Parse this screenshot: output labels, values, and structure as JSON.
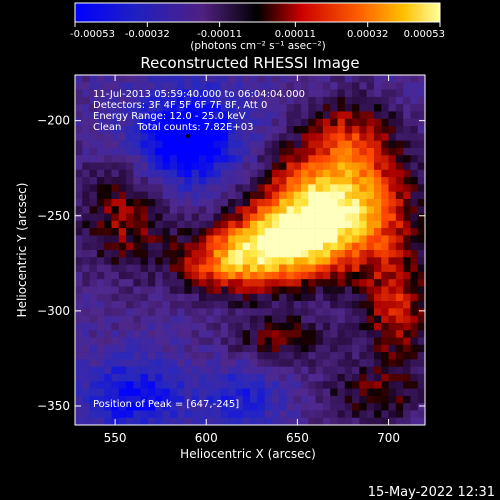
{
  "colorbar": {
    "tick_labels": [
      "-0.00053",
      "-0.00032",
      "-0.00011",
      "0.00011",
      "0.00032",
      "0.00053"
    ],
    "tick_values": [
      -0.00053,
      -0.00032,
      -0.00011,
      0.00011,
      0.00032,
      0.00053
    ],
    "range": [
      -0.00053,
      0.00053
    ],
    "units_label": "(photons cm⁻² s⁻¹ asec⁻²)",
    "colors": [
      "#0000ff",
      "#2020c0",
      "#502080",
      "#000000",
      "#cc0000",
      "#ff6000",
      "#ffc000",
      "#ffffa0"
    ]
  },
  "info_lines": [
    "11-Jul-2013 05:59:40.000 to 06:04:04.000",
    "Detectors: 3F 4F 5F 6F 7F 8F, Att 0",
    "Energy Range: 12.0 - 25.0 keV",
    "Clean     Total counts: 7.82E+03"
  ],
  "peak_label": "Position of Peak = [647,-245]",
  "timestamp": "15-May-2022 12:31",
  "chart_data": {
    "type": "heatmap",
    "title": "Reconstructed RHESSI Image",
    "xlabel": "Heliocentric X (arcsec)",
    "ylabel": "Heliocentric Y (arcsec)",
    "xlim": [
      528,
      720
    ],
    "ylim": [
      -360,
      -176
    ],
    "xticks": [
      550,
      600,
      650,
      700
    ],
    "xtick_labels": [
      "550",
      "600",
      "650",
      "700"
    ],
    "yticks": [
      -200,
      -250,
      -300,
      -350
    ],
    "ytick_labels": [
      "−200",
      "−250",
      "−300",
      "−350"
    ],
    "value_range": [
      -0.00053,
      0.00053
    ],
    "peak": [
      647,
      -245
    ],
    "grid": false,
    "legend": "none"
  }
}
